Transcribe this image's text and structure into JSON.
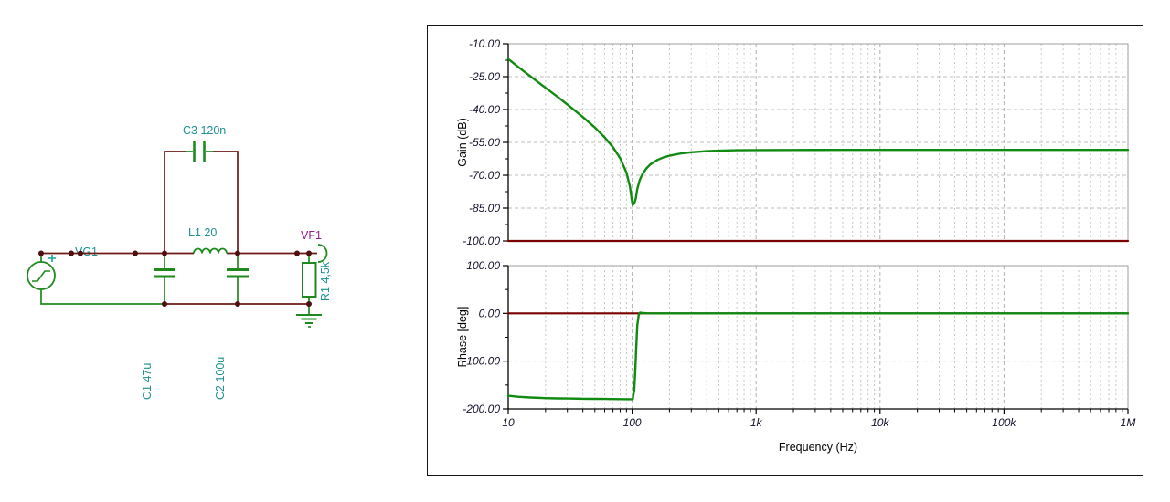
{
  "window": {
    "background": "#ffffff"
  },
  "circuit": {
    "labels": {
      "vg1": "VG1",
      "c1": "C1 47u",
      "c2": "C2 100u",
      "c3": "C3 120n",
      "l1": "L1 20",
      "r1": "R1 4,5k",
      "vf1": "VF1"
    },
    "colors": {
      "wire": "#6e1a14",
      "component": "#1e8a1e",
      "label": "#1d9191",
      "probe_label": "#8d1f8d",
      "junction": "#4d0f0f"
    }
  },
  "chart_data": {
    "type": "line",
    "x_scale": "log",
    "xlabel": "Frequency (Hz)",
    "x_range": [
      10,
      1000000
    ],
    "grid": true,
    "x_ticks": [
      {
        "f": 10,
        "label": "10"
      },
      {
        "f": 100,
        "label": "100"
      },
      {
        "f": 1000,
        "label": "1k"
      },
      {
        "f": 10000,
        "label": "10k"
      },
      {
        "f": 100000,
        "label": "100k"
      },
      {
        "f": 1000000,
        "label": "1M"
      }
    ],
    "panels": [
      {
        "ylabel": "Gain (dB)",
        "ymin": -100,
        "ymax": -10,
        "yticks": [
          {
            "v": -10,
            "label": "-10.00"
          },
          {
            "v": -25,
            "label": "-25.00"
          },
          {
            "v": -40,
            "label": "-40.00"
          },
          {
            "v": -55,
            "label": "-55.00"
          },
          {
            "v": -70,
            "label": "-70.00"
          },
          {
            "v": -85,
            "label": "-85.00"
          },
          {
            "v": -100,
            "label": "-100.00"
          }
        ],
        "series": [
          {
            "name": "vf1-gain",
            "color": "#118a11",
            "width": 2.4,
            "points": [
              [
                10,
                -16.9
              ],
              [
                12,
                -20.5
              ],
              [
                15,
                -24.7
              ],
              [
                20,
                -30.1
              ],
              [
                25,
                -34.2
              ],
              [
                30,
                -37.7
              ],
              [
                40,
                -43.4
              ],
              [
                50,
                -48.2
              ],
              [
                60,
                -52.7
              ],
              [
                70,
                -57.2
              ],
              [
                80,
                -62.2
              ],
              [
                90,
                -68.8
              ],
              [
                96,
                -75.2
              ],
              [
                99,
                -80.7
              ],
              [
                101,
                -83.6
              ],
              [
                104,
                -82.8
              ],
              [
                107,
                -80.6
              ],
              [
                110,
                -76.3
              ],
              [
                115,
                -72.3
              ],
              [
                120,
                -69.9
              ],
              [
                130,
                -66.9
              ],
              [
                140,
                -65.1
              ],
              [
                160,
                -63.0
              ],
              [
                180,
                -61.8
              ],
              [
                200,
                -61.1
              ],
              [
                250,
                -60.0
              ],
              [
                300,
                -59.5
              ],
              [
                400,
                -59.0
              ],
              [
                500,
                -58.8
              ],
              [
                700,
                -58.6
              ],
              [
                1000,
                -58.5
              ],
              [
                2000,
                -58.45
              ],
              [
                5000,
                -58.4
              ],
              [
                10000,
                -58.4
              ],
              [
                100000,
                -58.4
              ],
              [
                1000000,
                -58.4
              ]
            ]
          },
          {
            "name": "reference-gain",
            "color": "#7a0000",
            "width": 2.2,
            "points": [
              [
                10,
                -100
              ],
              [
                1000000,
                -100
              ]
            ]
          }
        ]
      },
      {
        "ylabel": "Phase [deg]",
        "ymin": -200,
        "ymax": 100,
        "yticks": [
          {
            "v": 100,
            "label": "100.00"
          },
          {
            "v": 0,
            "label": "0.00"
          },
          {
            "v": -100,
            "label": "-100.00"
          },
          {
            "v": -200,
            "label": "-200.00"
          }
        ],
        "series": [
          {
            "name": "reference-phase",
            "color": "#7a0000",
            "width": 2.2,
            "points": [
              [
                10,
                0
              ],
              [
                1000000,
                0
              ]
            ]
          },
          {
            "name": "vf1-phase",
            "color": "#118a11",
            "width": 2.4,
            "points": [
              [
                10,
                -172.5
              ],
              [
                12,
                -174.5
              ],
              [
                15,
                -176.2
              ],
              [
                20,
                -177.5
              ],
              [
                25,
                -178.0
              ],
              [
                30,
                -178.3
              ],
              [
                40,
                -178.8
              ],
              [
                50,
                -179.0
              ],
              [
                60,
                -179.2
              ],
              [
                80,
                -179.5
              ],
              [
                95,
                -179.7
              ],
              [
                101,
                -179.8
              ],
              [
                104,
                -160
              ],
              [
                106,
                -120
              ],
              [
                108,
                -70
              ],
              [
                110,
                -25
              ],
              [
                113,
                -3
              ],
              [
                116,
                1.5
              ],
              [
                122,
                0.7
              ],
              [
                130,
                0.2
              ],
              [
                150,
                0
              ],
              [
                1000,
                0
              ],
              [
                1000000,
                0
              ]
            ]
          }
        ]
      }
    ]
  }
}
